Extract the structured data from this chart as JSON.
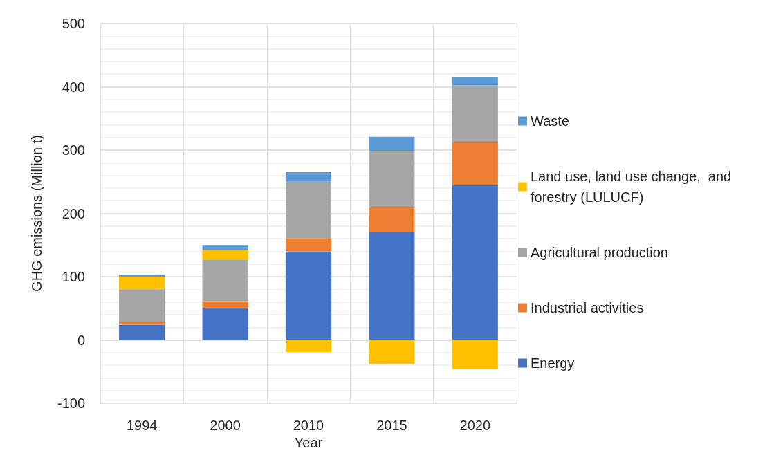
{
  "chart_data": {
    "type": "bar",
    "stacked": true,
    "xlabel": "Year",
    "ylabel": "GHG emissions (Million t)",
    "categories": [
      "1994",
      "2000",
      "2010",
      "2015",
      "2020"
    ],
    "series": [
      {
        "name": "Energy",
        "color": "#4472c4",
        "values": [
          24,
          51,
          140,
          170,
          245
        ]
      },
      {
        "name": "Industrial activities",
        "color": "#ed7d31",
        "values": [
          4,
          10,
          21,
          40,
          68
        ]
      },
      {
        "name": "Agricultural production",
        "color": "#a5a5a5",
        "values": [
          52,
          66,
          89,
          89,
          89
        ]
      },
      {
        "name": "Land use, land use change,  and forestry (LULUCF)",
        "color": "#ffc000",
        "values": [
          20,
          15,
          -19,
          -38,
          -46
        ]
      },
      {
        "name": "Waste",
        "color": "#5b9bd5",
        "values": [
          3,
          8,
          15,
          22,
          13
        ]
      }
    ],
    "ylim": [
      -100,
      500
    ],
    "yticks": [
      -100,
      {
        "value": -80,
        "label": null
      },
      {
        "value": -60,
        "label": null
      },
      {
        "value": -40,
        "label": null
      },
      {
        "value": -20,
        "label": null
      },
      0,
      {
        "value": 20,
        "label": null
      },
      {
        "value": 40,
        "label": null
      },
      {
        "value": 60,
        "label": null
      },
      {
        "value": 80,
        "label": null
      },
      100,
      {
        "value": 120,
        "label": null
      },
      {
        "value": 140,
        "label": null
      },
      {
        "value": 160,
        "label": null
      },
      {
        "value": 180,
        "label": null
      },
      200,
      {
        "value": 220,
        "label": null
      },
      {
        "value": 240,
        "label": null
      },
      {
        "value": 260,
        "label": null
      },
      {
        "value": 280,
        "label": null
      },
      300,
      {
        "value": 320,
        "label": null
      },
      {
        "value": 340,
        "label": null
      },
      {
        "value": 360,
        "label": null
      },
      {
        "value": 380,
        "label": null
      },
      400,
      {
        "value": 420,
        "label": null
      },
      {
        "value": 440,
        "label": null
      },
      {
        "value": 460,
        "label": null
      },
      {
        "value": 480,
        "label": null
      },
      500
    ],
    "grid": true,
    "legend": "right"
  }
}
